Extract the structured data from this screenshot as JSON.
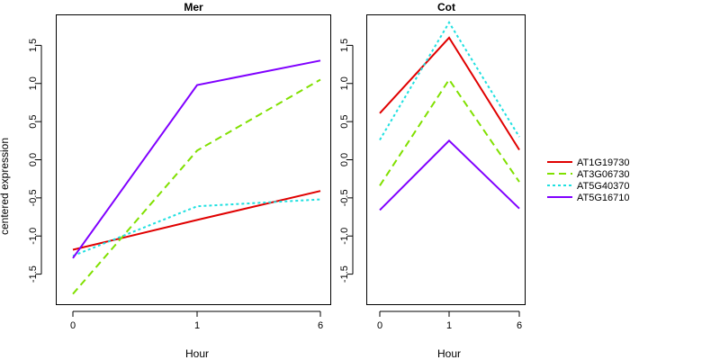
{
  "chart_data": {
    "type": "line",
    "ylabel": "centered expression",
    "legend_position": "right",
    "series_names": [
      "AT1G19730",
      "AT3G06730",
      "AT5G40370",
      "AT5G16710"
    ],
    "colors": [
      "#e00000",
      "#80e000",
      "#20e0e0",
      "#8000ff"
    ],
    "line_styles": [
      "solid",
      "dashed",
      "dotted",
      "solid"
    ],
    "panels": [
      {
        "title": "Mer",
        "xlabel": "Hour",
        "categories": [
          "0",
          "1",
          "6"
        ],
        "ylim": [
          -1.9,
          1.9
        ],
        "yticks": [
          "-1.5",
          "-1.0",
          "-0.5",
          "0.0",
          "0.5",
          "1.0",
          "1.5"
        ],
        "series": [
          {
            "name": "AT1G19730",
            "values": [
              -1.18,
              -0.79,
              -0.41
            ]
          },
          {
            "name": "AT3G06730",
            "values": [
              -1.76,
              0.12,
              1.05
            ]
          },
          {
            "name": "AT5G40370",
            "values": [
              -1.26,
              -0.61,
              -0.52
            ]
          },
          {
            "name": "AT5G16710",
            "values": [
              -1.29,
              0.98,
              1.3
            ]
          }
        ]
      },
      {
        "title": "Cot",
        "xlabel": "Hour",
        "categories": [
          "0",
          "1",
          "6"
        ],
        "ylim": [
          -1.9,
          1.9
        ],
        "yticks": [
          "-1.5",
          "-1.0",
          "-0.5",
          "0.0",
          "0.5",
          "1.0",
          "1.5"
        ],
        "series": [
          {
            "name": "AT1G19730",
            "values": [
              0.61,
              1.6,
              0.13
            ]
          },
          {
            "name": "AT3G06730",
            "values": [
              -0.34,
              1.05,
              -0.29
            ]
          },
          {
            "name": "AT5G40370",
            "values": [
              0.26,
              1.8,
              0.3
            ]
          },
          {
            "name": "AT5G16710",
            "values": [
              -0.66,
              0.25,
              -0.64
            ]
          }
        ]
      }
    ]
  }
}
